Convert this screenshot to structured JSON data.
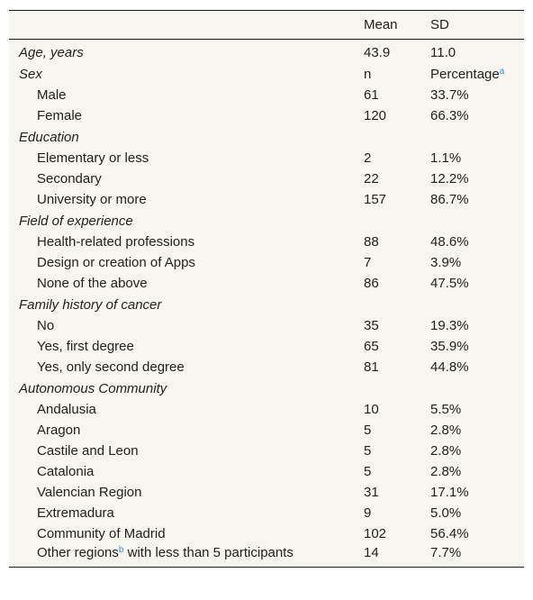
{
  "header": {
    "col1": "",
    "col2": "Mean",
    "col3": "SD"
  },
  "rows": [
    {
      "label": "Age, years",
      "italic": true,
      "indent": false,
      "v1": "43.9",
      "v2": "11.0"
    },
    {
      "label": "Sex",
      "italic": true,
      "indent": false,
      "v1": "n",
      "v2": "Percentage",
      "v2_sup": "a"
    },
    {
      "label": "Male",
      "italic": false,
      "indent": true,
      "v1": "61",
      "v2": "33.7%"
    },
    {
      "label": "Female",
      "italic": false,
      "indent": true,
      "v1": "120",
      "v2": "66.3%"
    },
    {
      "label": "Education",
      "italic": true,
      "indent": false,
      "v1": "",
      "v2": ""
    },
    {
      "label": "Elementary or less",
      "italic": false,
      "indent": true,
      "v1": "2",
      "v2": "1.1%"
    },
    {
      "label": "Secondary",
      "italic": false,
      "indent": true,
      "v1": "22",
      "v2": "12.2%"
    },
    {
      "label": "University or more",
      "italic": false,
      "indent": true,
      "v1": "157",
      "v2": "86.7%"
    },
    {
      "label": "Field of experience",
      "italic": true,
      "indent": false,
      "v1": "",
      "v2": ""
    },
    {
      "label": "Health-related professions",
      "italic": false,
      "indent": true,
      "v1": "88",
      "v2": "48.6%"
    },
    {
      "label": "Design or creation of Apps",
      "italic": false,
      "indent": true,
      "v1": "7",
      "v2": "3.9%"
    },
    {
      "label": "None of the above",
      "italic": false,
      "indent": true,
      "v1": "86",
      "v2": "47.5%"
    },
    {
      "label": "Family history of cancer",
      "italic": true,
      "indent": false,
      "v1": "",
      "v2": ""
    },
    {
      "label": "No",
      "italic": false,
      "indent": true,
      "v1": "35",
      "v2": "19.3%"
    },
    {
      "label": "Yes, first degree",
      "italic": false,
      "indent": true,
      "v1": "65",
      "v2": "35.9%"
    },
    {
      "label": "Yes, only second degree",
      "italic": false,
      "indent": true,
      "v1": "81",
      "v2": "44.8%"
    },
    {
      "label": "Autonomous Community",
      "italic": true,
      "indent": false,
      "v1": "",
      "v2": ""
    },
    {
      "label": "Andalusia",
      "italic": false,
      "indent": true,
      "v1": "10",
      "v2": "5.5%"
    },
    {
      "label": "Aragon",
      "italic": false,
      "indent": true,
      "v1": "5",
      "v2": "2.8%"
    },
    {
      "label": "Castile and Leon",
      "italic": false,
      "indent": true,
      "v1": "5",
      "v2": "2.8%"
    },
    {
      "label": "Catalonia",
      "italic": false,
      "indent": true,
      "v1": "5",
      "v2": "2.8%"
    },
    {
      "label": "Valencian Region",
      "italic": false,
      "indent": true,
      "v1": "31",
      "v2": "17.1%"
    },
    {
      "label": "Extremadura",
      "italic": false,
      "indent": true,
      "v1": "9",
      "v2": "5.0%"
    },
    {
      "label": "Community of Madrid",
      "italic": false,
      "indent": true,
      "v1": "102",
      "v2": "56.4%"
    },
    {
      "label": "Other regions",
      "label_sup": "b",
      "label_tail": " with less than 5 participants",
      "italic": false,
      "indent": true,
      "last": true,
      "v1": "14",
      "v2": "7.7%"
    }
  ],
  "colors": {
    "background": "#f7f5ef",
    "footnote_link": "#3a8fd6",
    "rule": "#1a1a1a"
  }
}
